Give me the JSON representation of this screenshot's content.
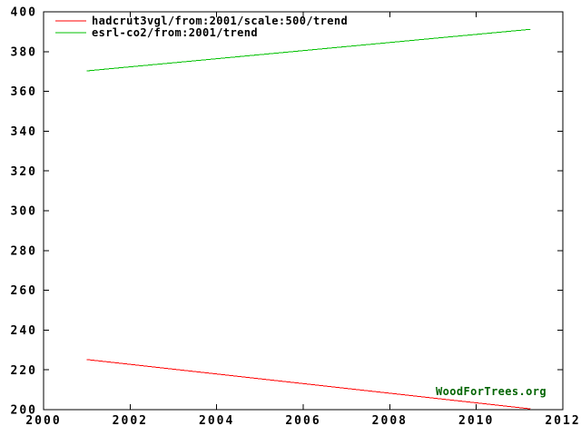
{
  "page": {
    "background_color": "#ffffff",
    "frame_color": "#000000"
  },
  "chart_data": {
    "type": "line",
    "title": "",
    "xlabel": "",
    "ylabel": "",
    "xlim": [
      2000,
      2012
    ],
    "ylim": [
      200,
      400
    ],
    "xticks": [
      2000,
      2002,
      2004,
      2006,
      2008,
      2010,
      2012
    ],
    "yticks": [
      200,
      220,
      240,
      260,
      280,
      300,
      320,
      340,
      360,
      380,
      400
    ],
    "grid": false,
    "legend_position": "top-left",
    "series": [
      {
        "name": "hadcrut3vgl/from:2001/scale:500/trend",
        "color": "#ff0000",
        "points": [
          [
            2001.0,
            225.2
          ],
          [
            2011.25,
            200.4
          ]
        ]
      },
      {
        "name": "esrl-co2/from:2001/trend",
        "color": "#00c000",
        "points": [
          [
            2001.0,
            370.3
          ],
          [
            2011.25,
            391.2
          ]
        ]
      }
    ],
    "watermark": {
      "text": "WoodForTrees.org",
      "color": "#006400"
    }
  }
}
